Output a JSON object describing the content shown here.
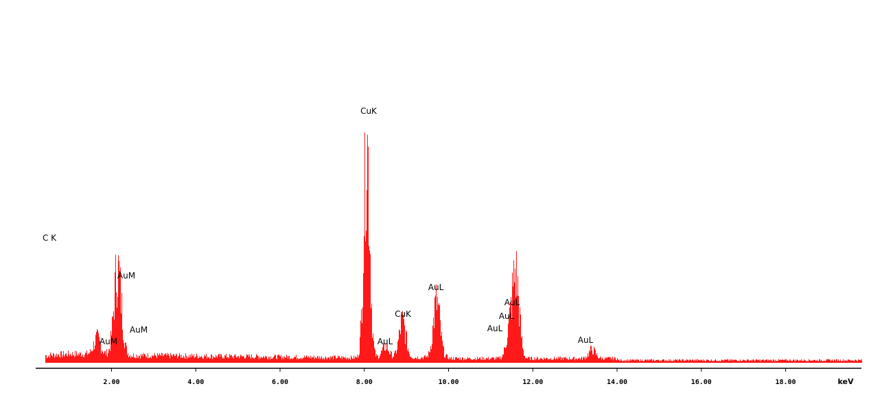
{
  "chart_data": {
    "type": "area",
    "title": "",
    "xlabel": "keV",
    "ylabel": "",
    "xlim": [
      0.2,
      19.8
    ],
    "ylim": [
      0,
      1
    ],
    "grid": false,
    "color": "#ff0000",
    "x_ticks": [
      2,
      4,
      6,
      8,
      10,
      12,
      14,
      16,
      18
    ],
    "x_tick_labels": [
      "2.00",
      "4.00",
      "6.00",
      "8.00",
      "10.00",
      "12.00",
      "14.00",
      "16.00",
      "18.00"
    ],
    "x_unit_label": "keV",
    "peaks": [
      {
        "label": "C K",
        "x": 0.28,
        "y": 0.49
      },
      {
        "label": "AuM",
        "x": 1.65,
        "y": 0.07
      },
      {
        "label": "AuM",
        "x": 2.12,
        "y": 0.31
      },
      {
        "label": "AuM",
        "x": 2.2,
        "y": 0.12
      },
      {
        "label": "CuK",
        "x": 8.05,
        "y": 1.0
      },
      {
        "label": "AuL",
        "x": 8.5,
        "y": 0.05
      },
      {
        "label": "CuK",
        "x": 8.9,
        "y": 0.16
      },
      {
        "label": "AuL",
        "x": 9.71,
        "y": 0.25
      },
      {
        "label": "AuL",
        "x": 11.44,
        "y": 0.12
      },
      {
        "label": "AuL",
        "x": 11.58,
        "y": 0.16
      },
      {
        "label": "AuL",
        "x": 11.6,
        "y": 0.21
      },
      {
        "label": "AuL",
        "x": 13.4,
        "y": 0.04
      }
    ]
  }
}
